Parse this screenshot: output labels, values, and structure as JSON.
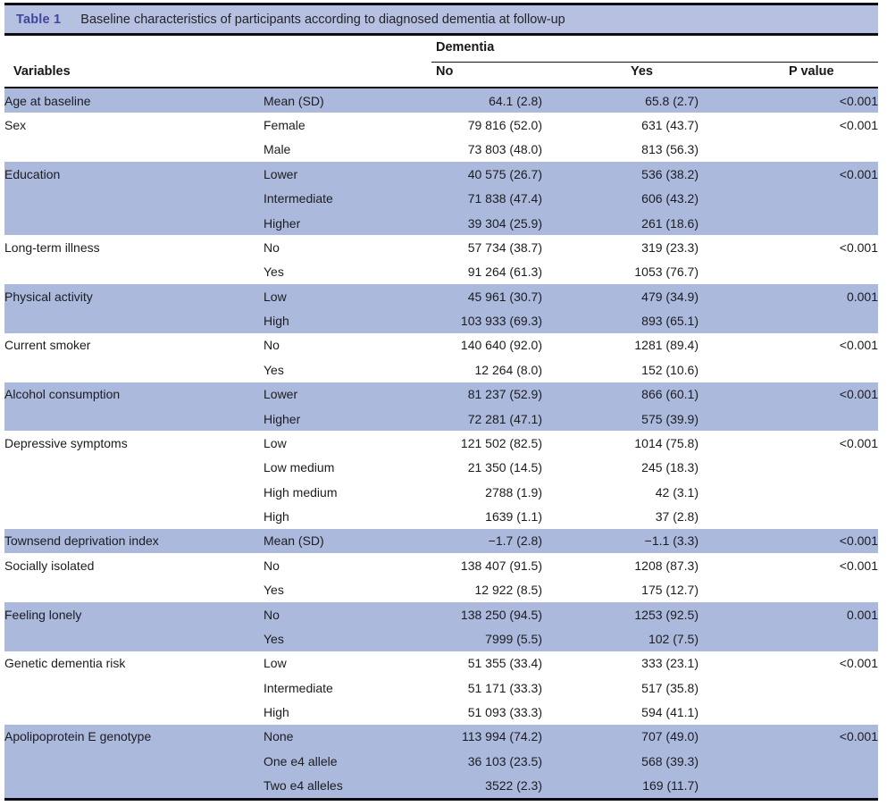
{
  "page": {
    "accent_color": "#41459c",
    "title_band_color": "#b6c1e2",
    "row_shade_color": "#abb9dc"
  },
  "table": {
    "label": "Table 1",
    "caption": "Baseline characteristics of participants according to diagnosed dementia at follow-up",
    "column_group_header": "Dementia",
    "headers": {
      "variables": "Variables",
      "no": "No",
      "yes": "Yes",
      "p": "P value"
    },
    "groups": [
      {
        "variable": "Age at baseline",
        "shaded": true,
        "p": "<0.001",
        "rows": [
          {
            "category": "Mean (SD)",
            "no": "64.1 (2.8)",
            "yes": "65.8 (2.7)"
          }
        ]
      },
      {
        "variable": "Sex",
        "shaded": false,
        "p": "<0.001",
        "rows": [
          {
            "category": "Female",
            "no": "79 816 (52.0)",
            "yes": "631 (43.7)"
          },
          {
            "category": "Male",
            "no": "73 803 (48.0)",
            "yes": "813 (56.3)"
          }
        ]
      },
      {
        "variable": "Education",
        "shaded": true,
        "p": "<0.001",
        "rows": [
          {
            "category": "Lower",
            "no": "40 575 (26.7)",
            "yes": "536 (38.2)"
          },
          {
            "category": "Intermediate",
            "no": "71 838 (47.4)",
            "yes": "606 (43.2)"
          },
          {
            "category": "Higher",
            "no": "39 304 (25.9)",
            "yes": "261 (18.6)"
          }
        ]
      },
      {
        "variable": "Long-term illness",
        "shaded": false,
        "p": "<0.001",
        "rows": [
          {
            "category": "No",
            "no": "57 734 (38.7)",
            "yes": "319 (23.3)"
          },
          {
            "category": "Yes",
            "no": "91 264 (61.3)",
            "yes": "1053 (76.7)"
          }
        ]
      },
      {
        "variable": "Physical activity",
        "shaded": true,
        "p": "0.001",
        "rows": [
          {
            "category": "Low",
            "no": "45 961 (30.7)",
            "yes": "479 (34.9)"
          },
          {
            "category": "High",
            "no": "103 933 (69.3)",
            "yes": "893 (65.1)"
          }
        ]
      },
      {
        "variable": "Current smoker",
        "shaded": false,
        "p": "<0.001",
        "rows": [
          {
            "category": "No",
            "no": "140 640 (92.0)",
            "yes": "1281 (89.4)"
          },
          {
            "category": "Yes",
            "no": "12 264 (8.0)",
            "yes": "152 (10.6)"
          }
        ]
      },
      {
        "variable": "Alcohol consumption",
        "shaded": true,
        "p": "<0.001",
        "rows": [
          {
            "category": "Lower",
            "no": "81 237 (52.9)",
            "yes": "866 (60.1)"
          },
          {
            "category": "Higher",
            "no": "72 281 (47.1)",
            "yes": "575 (39.9)"
          }
        ]
      },
      {
        "variable": "Depressive symptoms",
        "shaded": false,
        "p": "<0.001",
        "rows": [
          {
            "category": "Low",
            "no": "121 502 (82.5)",
            "yes": "1014 (75.8)"
          },
          {
            "category": "Low medium",
            "no": "21 350 (14.5)",
            "yes": "245 (18.3)"
          },
          {
            "category": "High medium",
            "no": "2788 (1.9)",
            "yes": "42 (3.1)"
          },
          {
            "category": "High",
            "no": "1639 (1.1)",
            "yes": "37 (2.8)"
          }
        ]
      },
      {
        "variable": "Townsend deprivation index",
        "shaded": true,
        "p": "<0.001",
        "rows": [
          {
            "category": "Mean (SD)",
            "no": "−1.7 (2.8)",
            "yes": "−1.1 (3.3)"
          }
        ]
      },
      {
        "variable": "Socially isolated",
        "shaded": false,
        "p": "<0.001",
        "rows": [
          {
            "category": "No",
            "no": "138 407 (91.5)",
            "yes": "1208 (87.3)"
          },
          {
            "category": "Yes",
            "no": "12 922 (8.5)",
            "yes": "175 (12.7)"
          }
        ]
      },
      {
        "variable": "Feeling lonely",
        "shaded": true,
        "p": "0.001",
        "rows": [
          {
            "category": "No",
            "no": "138 250 (94.5)",
            "yes": "1253 (92.5)"
          },
          {
            "category": "Yes",
            "no": "7999 (5.5)",
            "yes": "102 (7.5)"
          }
        ]
      },
      {
        "variable": "Genetic dementia risk",
        "shaded": false,
        "p": "<0.001",
        "rows": [
          {
            "category": "Low",
            "no": "51 355 (33.4)",
            "yes": "333 (23.1)"
          },
          {
            "category": "Intermediate",
            "no": "51 171 (33.3)",
            "yes": "517 (35.8)"
          },
          {
            "category": "High",
            "no": "51 093 (33.3)",
            "yes": "594 (41.1)"
          }
        ]
      },
      {
        "variable": "Apolipoprotein E genotype",
        "shaded": true,
        "p": "<0.001",
        "rows": [
          {
            "category": "None",
            "no": "113 994 (74.2)",
            "yes": "707 (49.0)"
          },
          {
            "category": "One e4 allele",
            "no": "36 103 (23.5)",
            "yes": "568 (39.3)"
          },
          {
            "category": "Two e4 alleles",
            "no": "3522 (2.3)",
            "yes": "169 (11.7)"
          }
        ]
      }
    ]
  }
}
